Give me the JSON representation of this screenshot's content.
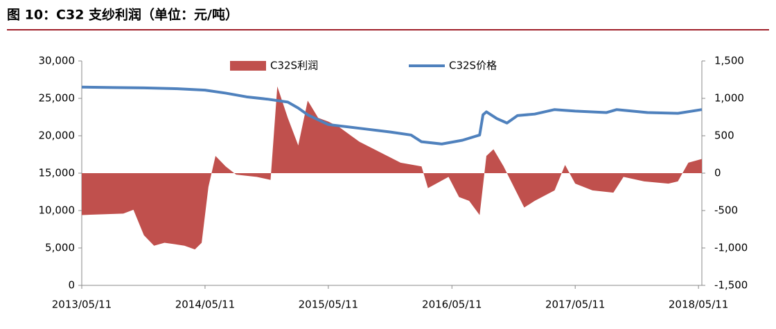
{
  "chart_data": {
    "type": "combo",
    "title": "图 10：C32 支纱利润（单位：元/吨）",
    "xlim": [
      "2013/05/11",
      "2018/05/21"
    ],
    "xticks": [
      "2013/05/11",
      "2014/05/11",
      "2015/05/11",
      "2016/05/11",
      "2017/05/11",
      "2018/05/11"
    ],
    "ylim": [
      0,
      30000
    ],
    "yticks": [
      0,
      {
        "value": 5000,
        "label": "5,000"
      },
      {
        "value": 10000,
        "label": "10,000"
      },
      {
        "value": 15000,
        "label": "15,000"
      },
      {
        "value": 20000,
        "label": "20,000"
      },
      {
        "value": 25000,
        "label": "25,000"
      },
      {
        "value": 30000,
        "label": "30,000"
      }
    ],
    "y2lim": [
      -1500,
      1500
    ],
    "y2ticks": [
      {
        "value": -1500,
        "label": "-1,500"
      },
      {
        "value": -1000,
        "label": "-1,000"
      },
      -500,
      0,
      500,
      {
        "value": 1000,
        "label": "1,000"
      },
      {
        "value": 1500,
        "label": "1,500"
      }
    ],
    "series": [
      {
        "name": "C32S利润",
        "type": "area",
        "axis": "y2",
        "color": "#c0504d",
        "x": [
          "2013/05/11",
          "2013/09/11",
          "2013/10/11",
          "2013/11/11",
          "2013/12/11",
          "2014/01/11",
          "2014/02/11",
          "2014/03/11",
          "2014/04/11",
          "2014/05/01",
          "2014/05/21",
          "2014/06/11",
          "2014/07/11",
          "2014/08/11",
          "2014/10/11",
          "2014/11/21",
          "2014/12/11",
          "2015/01/11",
          "2015/02/11",
          "2015/03/11",
          "2015/04/11",
          "2015/05/11",
          "2015/06/11",
          "2015/08/11",
          "2015/10/11",
          "2015/12/11",
          "2016/02/11",
          "2016/03/01",
          "2016/05/01",
          "2016/06/01",
          "2016/07/01",
          "2016/08/01",
          "2016/08/21",
          "2016/09/11",
          "2016/10/11",
          "2016/11/11",
          "2016/12/11",
          "2017/01/11",
          "2017/03/11",
          "2017/04/11",
          "2017/05/11",
          "2017/07/01",
          "2017/09/01",
          "2017/10/01",
          "2017/12/01",
          "2018/02/11",
          "2018/03/11",
          "2018/04/11",
          "2018/05/21"
        ],
        "values": [
          -560,
          -540,
          -490,
          -830,
          -970,
          -930,
          -950,
          -970,
          -1020,
          -930,
          -185,
          230,
          90,
          -20,
          -50,
          -90,
          1160,
          740,
          370,
          970,
          740,
          690,
          620,
          420,
          280,
          140,
          90,
          -200,
          -50,
          -320,
          -370,
          -560,
          230,
          320,
          90,
          -190,
          -460,
          -370,
          -230,
          110,
          -140,
          -230,
          -260,
          -50,
          -110,
          -140,
          -110,
          140,
          190
        ]
      },
      {
        "name": "C32S价格",
        "type": "line",
        "color": "#4f81bd",
        "x": [
          "2013/05/11",
          "2013/08/11",
          "2013/11/11",
          "2014/02/11",
          "2014/05/11",
          "2014/07/11",
          "2014/09/11",
          "2014/11/11",
          "2015/01/11",
          "2015/02/11",
          "2015/03/11",
          "2015/05/11",
          "2015/08/11",
          "2015/11/11",
          "2016/01/11",
          "2016/02/11",
          "2016/04/11",
          "2016/06/11",
          "2016/08/01",
          "2016/08/11",
          "2016/08/21",
          "2016/09/21",
          "2016/10/21",
          "2016/11/21",
          "2017/01/11",
          "2017/03/11",
          "2017/05/11",
          "2017/08/11",
          "2017/09/11",
          "2017/12/11",
          "2018/03/11",
          "2018/05/21"
        ],
        "values": [
          26500,
          26450,
          26400,
          26300,
          26100,
          25700,
          25200,
          24900,
          24500,
          23700,
          22800,
          21500,
          21000,
          20500,
          20100,
          19200,
          18900,
          19400,
          20100,
          22800,
          23200,
          22300,
          21700,
          22700,
          22900,
          23500,
          23300,
          23100,
          23500,
          23100,
          23000,
          23500
        ]
      }
    ]
  }
}
